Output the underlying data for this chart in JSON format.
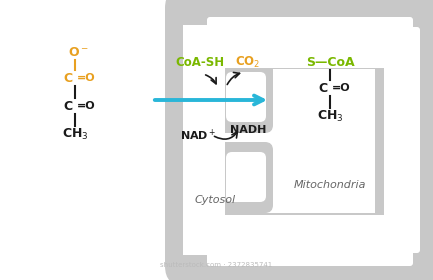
{
  "bg_color": "#ffffff",
  "mito_gray": "#c8c8c8",
  "orange_color": "#E8A020",
  "green_color": "#7AB800",
  "black_color": "#1a1a1a",
  "blue_arrow_color": "#29B6D8",
  "cytosol_label": "Cytosol",
  "mito_label": "Mitochondria",
  "watermark": "shutterstock.com · 2372835741"
}
